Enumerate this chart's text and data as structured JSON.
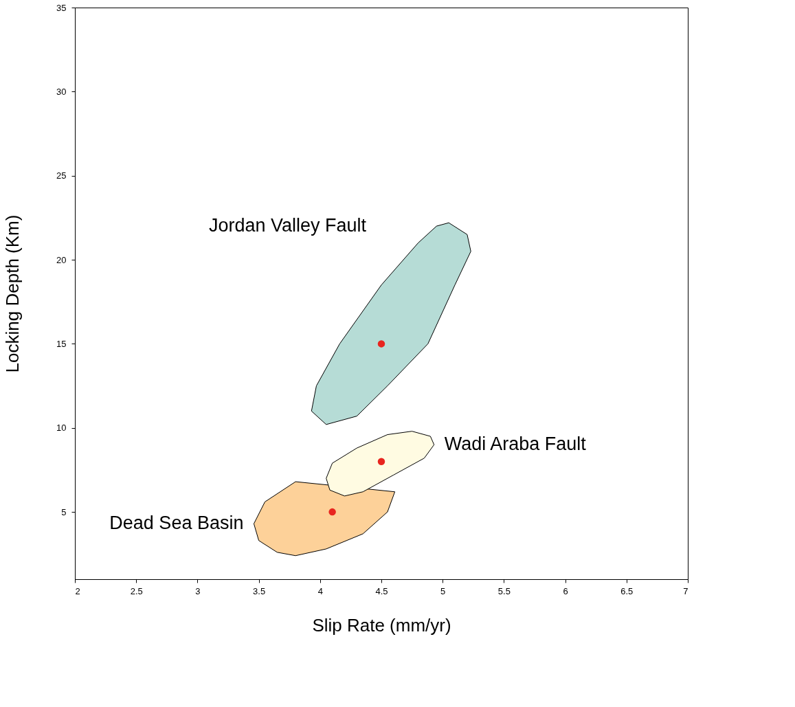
{
  "chart_data": {
    "type": "scatter",
    "xlabel": "Slip Rate (mm/yr)",
    "ylabel": "Locking Depth (Km)",
    "xlim": [
      2,
      7
    ],
    "xticks": [
      2,
      2.5,
      3,
      3.5,
      4,
      4.5,
      5,
      5.5,
      6,
      6.5,
      7
    ],
    "ylim": [
      1,
      35
    ],
    "yticks": [
      5,
      10,
      15,
      20,
      25,
      30,
      35
    ],
    "grid": false,
    "series": [
      {
        "type": "area",
        "name": "Jordan Valley Fault",
        "color": "#b6dcd6",
        "x": [
          5.05,
          5.2,
          5.23,
          5.1,
          4.88,
          4.55,
          4.3,
          4.05,
          3.93,
          3.97,
          4.16,
          4.5,
          4.8,
          4.95
        ],
        "values": [
          22.2,
          21.5,
          20.5,
          18.5,
          15,
          12.5,
          10.7,
          10.2,
          11,
          12.5,
          15,
          18.5,
          21,
          22
        ]
      },
      {
        "type": "area",
        "name": "Dead Sea Basin",
        "color": "#fdd199",
        "x": [
          3.46,
          3.5,
          3.65,
          3.8,
          4.05,
          4.35,
          4.55,
          4.61,
          3.8,
          3.55
        ],
        "values": [
          4.3,
          3.3,
          2.6,
          2.4,
          2.8,
          3.7,
          5.0,
          6.2,
          6.8,
          5.6
        ]
      },
      {
        "type": "area",
        "name": "Wadi Araba Fault",
        "color": "#fffbe2",
        "x": [
          4.05,
          4.1,
          4.3,
          4.55,
          4.75,
          4.9,
          4.93,
          4.85,
          4.6,
          4.35,
          4.2,
          4.08
        ],
        "values": [
          7.0,
          7.9,
          8.8,
          9.6,
          9.8,
          9.5,
          9.0,
          8.2,
          7.2,
          6.2,
          5.95,
          6.3
        ]
      },
      {
        "type": "scatter",
        "color": "#e8251f",
        "marker": "circle",
        "x": [
          4.5,
          4.5,
          4.1
        ],
        "values": [
          15,
          8,
          5
        ]
      }
    ]
  }
}
